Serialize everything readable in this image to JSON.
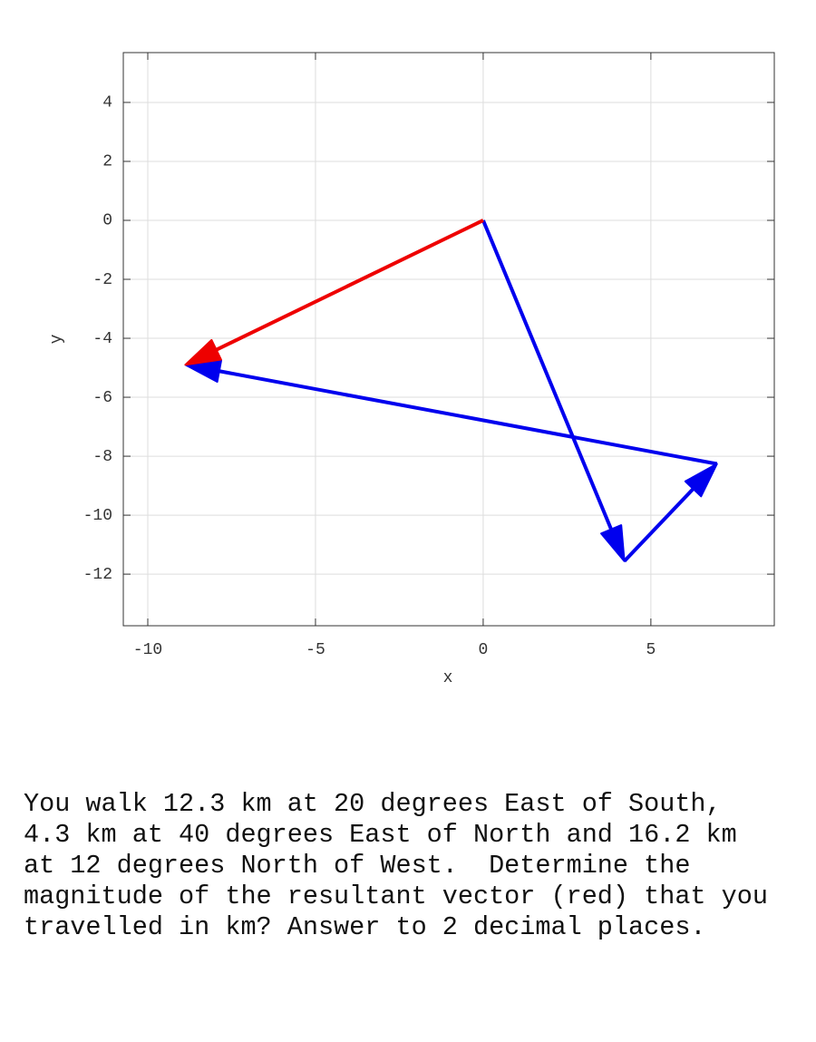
{
  "chart_data": {
    "type": "vector",
    "xlabel": "x",
    "ylabel": "y",
    "xlim": [
      -10.73,
      8.68
    ],
    "ylim": [
      -13.75,
      5.69
    ],
    "xticks": [
      -10,
      -5,
      0,
      5
    ],
    "yticks": [
      -12,
      -10,
      -8,
      -6,
      -4,
      -2,
      0,
      2,
      4
    ],
    "grid": true,
    "series": [
      {
        "color": "#0000ee",
        "x": [
          0,
          4.21,
          6.97,
          -8.88
        ],
        "y": [
          0,
          -11.56,
          -8.26,
          -4.9
        ]
      },
      {
        "color": "#ee0000",
        "x": [
          0,
          -8.88
        ],
        "y": [
          0,
          -4.9
        ]
      }
    ]
  },
  "question": [
    "You walk 12.3 km at 20 degrees East of South,",
    "4.3 km at 40 degrees East of North and 16.2 km",
    "at 12 degrees North of West.  Determine the",
    "magnitude of the resultant vector (red) that you",
    "travelled in km? Answer to 2 decimal places."
  ]
}
